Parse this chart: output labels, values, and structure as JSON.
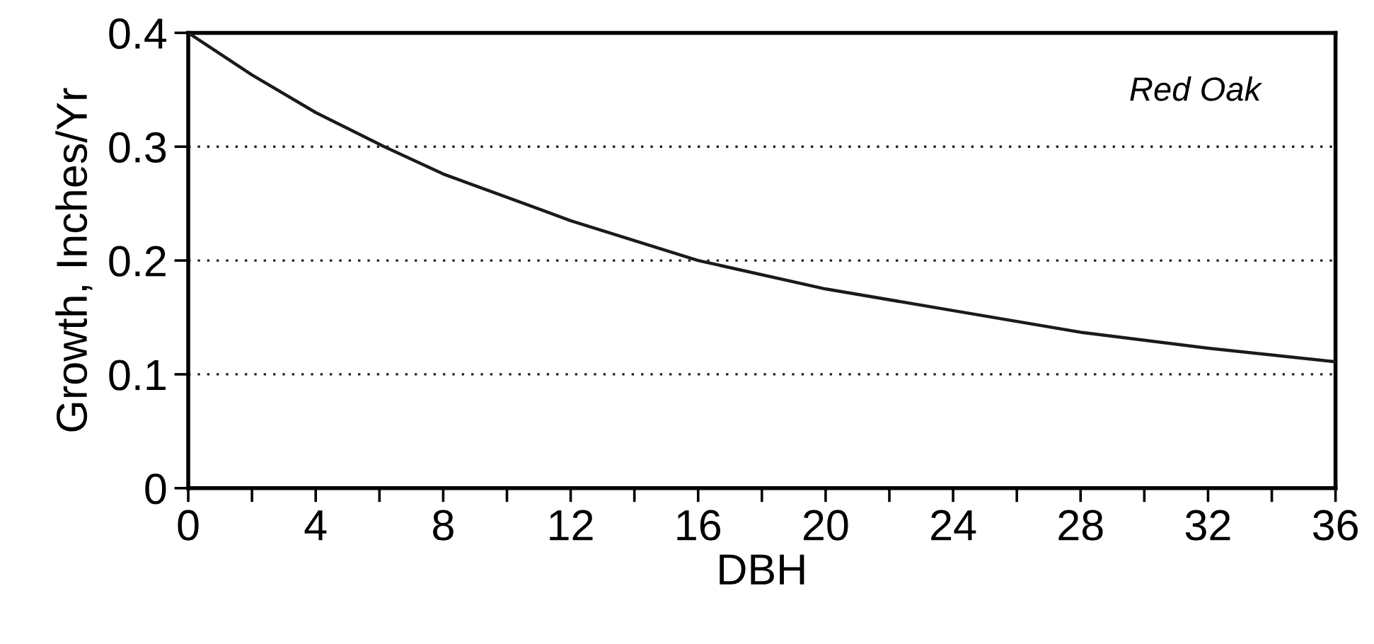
{
  "chart_data": {
    "type": "line",
    "xlabel": "DBH",
    "ylabel": "Growth, Inches/Yr",
    "annotations": [
      "Red Oak"
    ],
    "x": [
      0,
      2,
      4,
      6.15,
      8,
      12,
      16,
      20,
      24,
      28,
      32,
      36
    ],
    "series": [
      {
        "color": "#1a1a1a",
        "values": [
          0.4,
          0.363,
          0.33,
          0.3,
          0.276,
          0.235,
          0.2,
          0.175,
          0.156,
          0.137,
          0.123,
          0.111
        ]
      }
    ],
    "xlim": [
      0,
      36
    ],
    "ylim": [
      0,
      0.4
    ],
    "xticks": [
      0,
      {
        "value": 2,
        "label": null
      },
      4,
      {
        "value": 6,
        "label": null
      },
      8,
      {
        "value": 10,
        "label": null
      },
      12,
      {
        "value": 14,
        "label": null
      },
      16,
      {
        "value": 18,
        "label": null
      },
      20,
      {
        "value": 22,
        "label": null
      },
      24,
      {
        "value": 26,
        "label": null
      },
      28,
      {
        "value": 30,
        "label": null
      },
      32,
      {
        "value": 34,
        "label": null
      },
      36
    ],
    "yticks": [
      0,
      0.1,
      0.2,
      0.3,
      0.4
    ],
    "grid": "y",
    "line_style": "solid",
    "marker": "none",
    "legend": false
  }
}
